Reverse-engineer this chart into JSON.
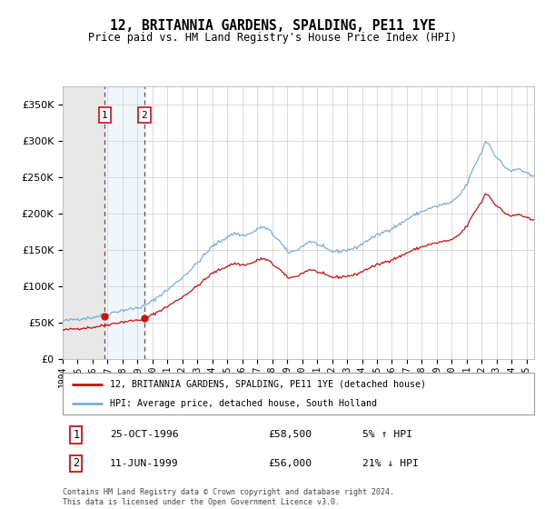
{
  "title": "12, BRITANNIA GARDENS, SPALDING, PE11 1YE",
  "subtitle": "Price paid vs. HM Land Registry's House Price Index (HPI)",
  "legend_line1": "12, BRITANNIA GARDENS, SPALDING, PE11 1YE (detached house)",
  "legend_line2": "HPI: Average price, detached house, South Holland",
  "transaction1_date": "25-OCT-1996",
  "transaction1_price": "£58,500",
  "transaction1_hpi": "5% ↑ HPI",
  "transaction1_year": 1996.82,
  "transaction1_value": 58500,
  "transaction2_date": "11-JUN-1999",
  "transaction2_price": "£56,000",
  "transaction2_hpi": "21% ↓ HPI",
  "transaction2_year": 1999.45,
  "transaction2_value": 56000,
  "hpi_color": "#7ab0d4",
  "price_color": "#cc1111",
  "ylim": [
    0,
    375000
  ],
  "yticks": [
    0,
    50000,
    100000,
    150000,
    200000,
    250000,
    300000,
    350000
  ],
  "xmin": 1994.0,
  "xmax": 2025.5,
  "footnote": "Contains HM Land Registry data © Crown copyright and database right 2024.\nThis data is licensed under the Open Government Licence v3.0."
}
